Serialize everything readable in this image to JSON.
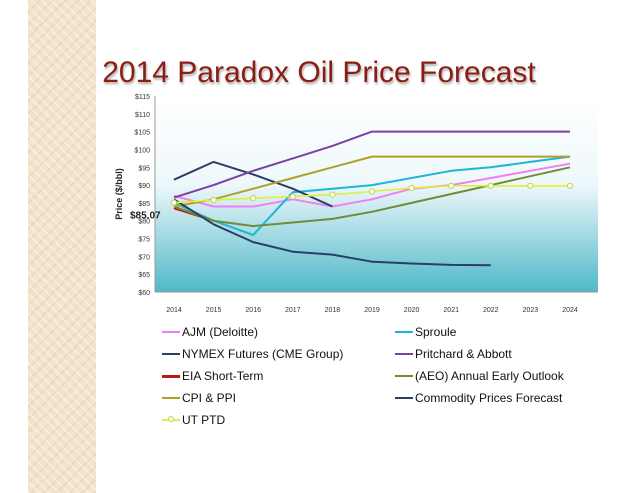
{
  "slide": {
    "title": "2014 Paradox Oil Price Forecast"
  },
  "chart_data": {
    "type": "line",
    "title": "2014 Paradox Oil Price Forecast",
    "xlabel": "",
    "ylabel": "Price ($/bbl)",
    "x": [
      "2014",
      "2015",
      "2016",
      "2017",
      "2018",
      "2019",
      "2020",
      "2021",
      "2022",
      "2023",
      "2024"
    ],
    "y_ticks": [
      "$60",
      "$65",
      "$70",
      "$75",
      "$80",
      "$85",
      "$90",
      "$95",
      "$100",
      "$105",
      "$110",
      "$115"
    ],
    "ylim": [
      60,
      115
    ],
    "grid": false,
    "annotation": {
      "text": "$85.07",
      "x": "2014",
      "y": 85.07
    },
    "series": [
      {
        "name": "AJM (Deloitte)",
        "color": "#f27ef2",
        "marker": false,
        "values": [
          87,
          84,
          84,
          86,
          84,
          86,
          89,
          90,
          92,
          94,
          96
        ]
      },
      {
        "name": "Sproule",
        "color": "#1fb6d6",
        "marker": false,
        "values": [
          85,
          80,
          76,
          88,
          89,
          90,
          92,
          94,
          95,
          96.5,
          98
        ]
      },
      {
        "name": "NYMEX Futures (CME Group)",
        "color": "#2c3e66",
        "marker": false,
        "values": [
          91.5,
          96.5,
          93,
          89,
          84,
          null,
          null,
          null,
          null,
          null,
          null
        ]
      },
      {
        "name": "Pritchard & Abbott",
        "color": "#7b3fa6",
        "marker": false,
        "values": [
          86.5,
          90,
          94,
          97.5,
          101,
          105,
          105,
          105,
          105,
          105,
          105
        ]
      },
      {
        "name": "EIA Short-Term",
        "color": "#b81a1a",
        "marker": false,
        "values": [
          83.5,
          80,
          null,
          null,
          null,
          null,
          null,
          null,
          null,
          null,
          null
        ]
      },
      {
        "name": "(AEO) Annual Early Outlook",
        "color": "#6e8c3a",
        "marker": false,
        "values": [
          84,
          80,
          78.5,
          79.5,
          80.5,
          82.5,
          85,
          87.5,
          90,
          92.5,
          95
        ]
      },
      {
        "name": "CPI & PPI",
        "color": "#b0a02a",
        "marker": false,
        "values": [
          84,
          86,
          89,
          92,
          95,
          98,
          98,
          98,
          98,
          98,
          98
        ]
      },
      {
        "name": "Commodity Prices Forecast",
        "color": "#2c3e66",
        "marker": false,
        "values": [
          86,
          79,
          74,
          71.3,
          70.5,
          68.5,
          68,
          67.6,
          67.5,
          null,
          null
        ]
      },
      {
        "name": "UT PTD",
        "color": "#dff03a",
        "marker": true,
        "values": [
          85.07,
          85.8,
          86.3,
          86.8,
          87.3,
          88.2,
          89.2,
          89.8,
          89.8,
          89.8,
          89.8
        ]
      }
    ],
    "legend_order": [
      "AJM (Deloitte)",
      "Sproule",
      "NYMEX Futures (CME Group)",
      "Pritchard & Abbott",
      "EIA Short-Term",
      "(AEO) Annual Early Outlook",
      "CPI & PPI",
      "Commodity Prices Forecast",
      "UT PTD"
    ],
    "legend_position": "bottom"
  }
}
